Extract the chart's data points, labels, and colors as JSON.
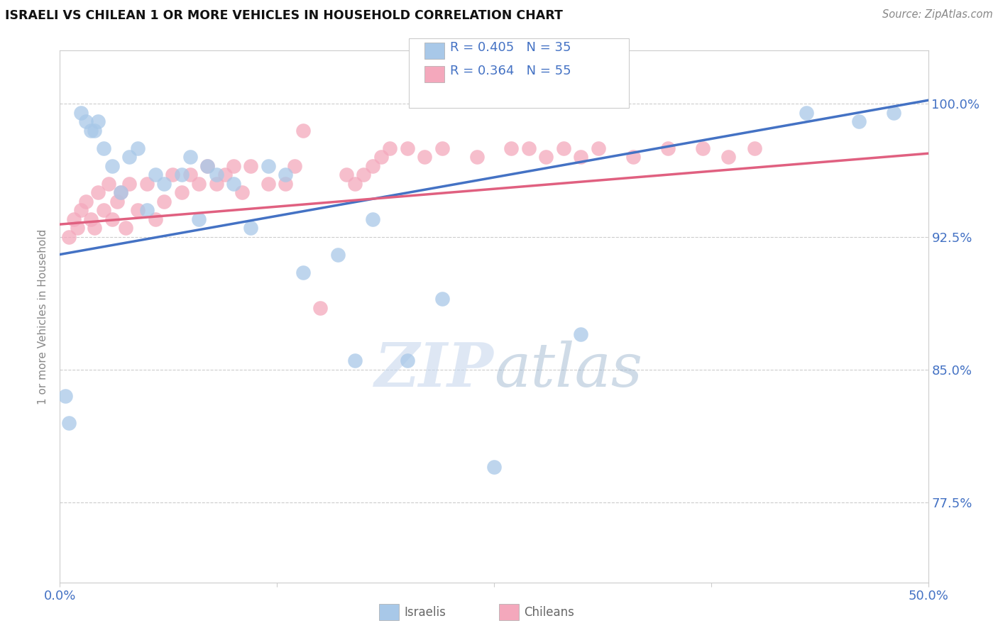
{
  "title": "ISRAELI VS CHILEAN 1 OR MORE VEHICLES IN HOUSEHOLD CORRELATION CHART",
  "source": "Source: ZipAtlas.com",
  "ylabel": "1 or more Vehicles in Household",
  "xlim": [
    0.0,
    50.0
  ],
  "ylim": [
    73.0,
    103.0
  ],
  "yticks": [
    77.5,
    85.0,
    92.5,
    100.0
  ],
  "xtick_positions": [
    0.0,
    12.5,
    25.0,
    37.5,
    50.0
  ],
  "ytick_labels": [
    "77.5%",
    "85.0%",
    "92.5%",
    "100.0%"
  ],
  "israeli_color": "#a8c8e8",
  "chilean_color": "#f4a8bc",
  "israeli_line_color": "#4472c4",
  "chilean_line_color": "#e06080",
  "legend_R_israeli": "R = 0.405",
  "legend_N_israeli": "N = 35",
  "legend_R_chilean": "R = 0.364",
  "legend_N_chilean": "N = 55",
  "watermark_zip": "ZIP",
  "watermark_atlas": "atlas",
  "title_color": "#111111",
  "tick_color": "#4472c4",
  "israeli_x": [
    0.3,
    0.5,
    1.2,
    1.5,
    1.8,
    2.0,
    2.2,
    2.5,
    3.0,
    3.5,
    4.0,
    4.5,
    5.0,
    5.5,
    6.0,
    7.0,
    7.5,
    8.0,
    8.5,
    9.0,
    10.0,
    11.0,
    12.0,
    13.0,
    14.0,
    16.0,
    17.0,
    18.0,
    20.0,
    22.0,
    25.0,
    30.0,
    43.0,
    46.0,
    48.0
  ],
  "israeli_y": [
    83.5,
    82.0,
    99.5,
    99.0,
    98.5,
    98.5,
    99.0,
    97.5,
    96.5,
    95.0,
    97.0,
    97.5,
    94.0,
    96.0,
    95.5,
    96.0,
    97.0,
    93.5,
    96.5,
    96.0,
    95.5,
    93.0,
    96.5,
    96.0,
    90.5,
    91.5,
    85.5,
    93.5,
    85.5,
    89.0,
    79.5,
    87.0,
    99.5,
    99.0,
    99.5
  ],
  "chilean_x": [
    0.5,
    0.8,
    1.0,
    1.2,
    1.5,
    1.8,
    2.0,
    2.2,
    2.5,
    2.8,
    3.0,
    3.3,
    3.5,
    3.8,
    4.0,
    4.5,
    5.0,
    5.5,
    6.0,
    6.5,
    7.0,
    7.5,
    8.0,
    8.5,
    9.0,
    9.5,
    10.0,
    10.5,
    11.0,
    12.0,
    13.0,
    13.5,
    14.0,
    15.0,
    16.5,
    17.0,
    17.5,
    18.0,
    18.5,
    19.0,
    20.0,
    21.0,
    22.0,
    24.0,
    26.0,
    27.0,
    28.0,
    29.0,
    30.0,
    31.0,
    33.0,
    35.0,
    37.0,
    38.5,
    40.0
  ],
  "chilean_y": [
    92.5,
    93.5,
    93.0,
    94.0,
    94.5,
    93.5,
    93.0,
    95.0,
    94.0,
    95.5,
    93.5,
    94.5,
    95.0,
    93.0,
    95.5,
    94.0,
    95.5,
    93.5,
    94.5,
    96.0,
    95.0,
    96.0,
    95.5,
    96.5,
    95.5,
    96.0,
    96.5,
    95.0,
    96.5,
    95.5,
    95.5,
    96.5,
    98.5,
    88.5,
    96.0,
    95.5,
    96.0,
    96.5,
    97.0,
    97.5,
    97.5,
    97.0,
    97.5,
    97.0,
    97.5,
    97.5,
    97.0,
    97.5,
    97.0,
    97.5,
    97.0,
    97.5,
    97.5,
    97.0,
    97.5
  ],
  "israeli_line_x0": 0.0,
  "israeli_line_y0": 91.5,
  "israeli_line_x1": 50.0,
  "israeli_line_y1": 100.2,
  "chilean_line_x0": 0.0,
  "chilean_line_y0": 93.2,
  "chilean_line_x1": 50.0,
  "chilean_line_y1": 97.2
}
